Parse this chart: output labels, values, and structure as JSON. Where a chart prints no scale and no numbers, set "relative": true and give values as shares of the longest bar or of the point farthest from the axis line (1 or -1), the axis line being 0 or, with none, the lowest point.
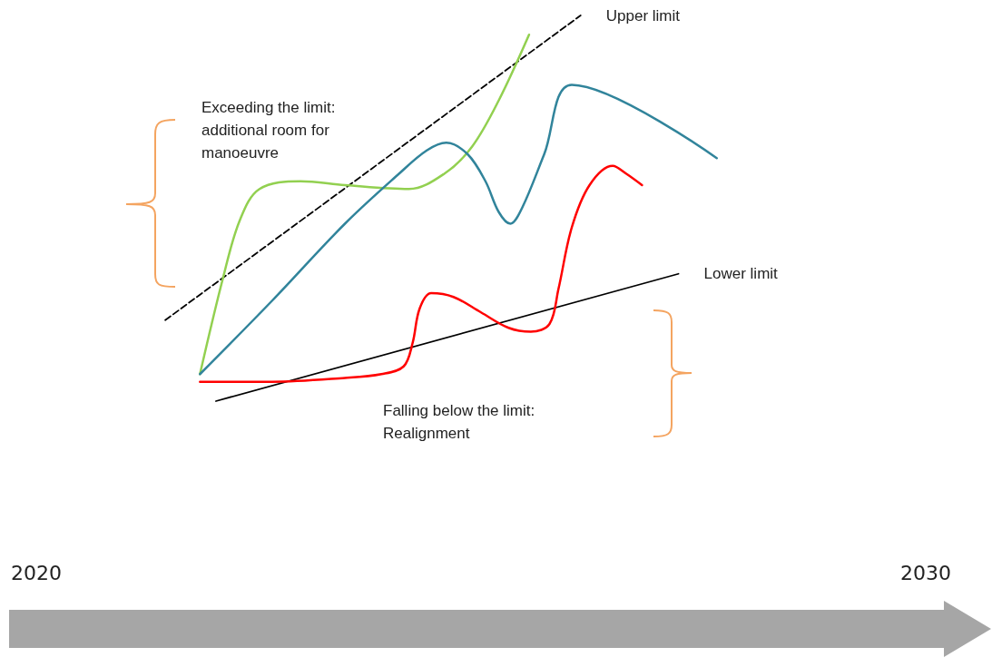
{
  "chart_data": {
    "type": "line",
    "relative": true,
    "xlim": [
      2020,
      2030
    ],
    "xticks": [
      2020,
      2030
    ],
    "grid": false,
    "legend": false,
    "marker": "none",
    "series": [
      {
        "name": "Upper limit",
        "color": "#000000",
        "line_style": "dashed",
        "x": [
          2021.45,
          2026.12
        ],
        "values": [
          0.21,
          1.0
        ]
      },
      {
        "name": "Lower limit",
        "color": "#000000",
        "line_style": "solid",
        "x": [
          2022.02,
          2027.22
        ],
        "values": [
          0,
          0.33
        ]
      },
      {
        "color": "#92d050",
        "line_style": "solid",
        "x": [
          2021.84,
          2022.1,
          2022.29,
          2022.51,
          2022.97,
          2023.47,
          2024.19,
          2024.59,
          2024.9,
          2025.2,
          2025.54
        ],
        "values": [
          0.07,
          0.32,
          0.47,
          0.55,
          0.57,
          0.56,
          0.55,
          0.59,
          0.66,
          0.78,
          0.95
        ]
      },
      {
        "color": "#31849b",
        "line_style": "solid",
        "x": [
          2021.84,
          2022.65,
          2023.47,
          2024.08,
          2024.39,
          2024.61,
          2024.85,
          2025.05,
          2025.2,
          2025.33,
          2025.46,
          2025.71,
          2026.02,
          2027.65
        ],
        "values": [
          0.07,
          0.26,
          0.46,
          0.59,
          0.65,
          0.67,
          0.64,
          0.57,
          0.49,
          0.46,
          0.5,
          0.64,
          0.82,
          0.63
        ]
      },
      {
        "color": "#ff0000",
        "line_style": "solid",
        "x": [
          2021.84,
          2022.65,
          2023.47,
          2023.88,
          2024.13,
          2024.23,
          2024.31,
          2024.44,
          2024.69,
          2025.0,
          2025.31,
          2025.56,
          2025.77,
          2025.87,
          2026.02,
          2026.22,
          2026.48,
          2026.63,
          2026.81
        ],
        "values": [
          0.05,
          0.05,
          0.06,
          0.07,
          0.09,
          0.15,
          0.24,
          0.28,
          0.27,
          0.23,
          0.19,
          0.18,
          0.2,
          0.29,
          0.45,
          0.56,
          0.61,
          0.59,
          0.56
        ]
      }
    ],
    "annotations": [
      "Exceeding the limit:\nadditional room for\nmanoeuvre",
      "Falling below the limit:\nRealignment"
    ]
  }
}
